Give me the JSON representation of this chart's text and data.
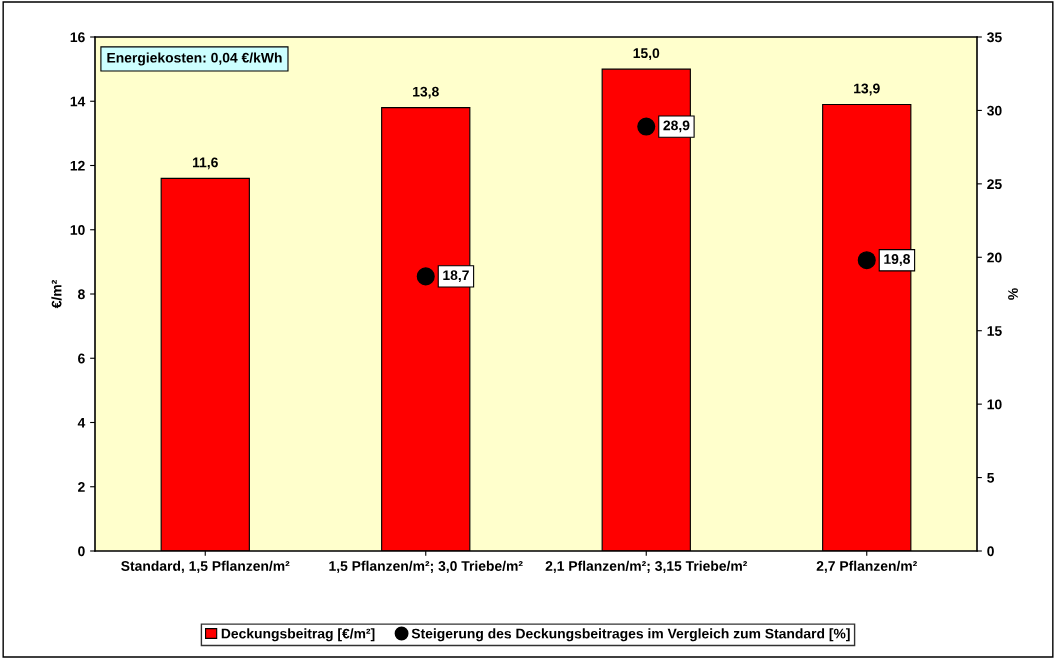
{
  "chart_data": {
    "type": "bar",
    "categories": [
      "Standard, 1,5 Pflanzen/m²",
      "1,5 Pflanzen/m²; 3,0 Triebe/m²",
      "2,1 Pflanzen/m²; 3,15 Triebe/m²",
      "2,7 Pflanzen/m²"
    ],
    "series": [
      {
        "name": "Deckungsbeitrag [€/m²]",
        "color": "#ff0000",
        "values": [
          11.6,
          13.8,
          15.0,
          13.9
        ],
        "value_labels": [
          "11,6",
          "13,8",
          "15,0",
          "13,9"
        ]
      },
      {
        "name": "Steigerung des Deckungsbeitrages im Vergleich zum Standard [%]",
        "color": "#000000",
        "type": "scatter",
        "axis": "y2",
        "values": [
          null,
          18.7,
          28.9,
          19.8
        ],
        "value_labels": [
          null,
          "18,7",
          "28,9",
          "19,8"
        ]
      }
    ],
    "ylabel": "€/m²",
    "y2label": "%",
    "ylim": [
      0,
      16
    ],
    "yticks": [
      0,
      2,
      4,
      6,
      8,
      10,
      12,
      14,
      16
    ],
    "y2lim": [
      0,
      35
    ],
    "y2ticks": [
      0,
      5,
      10,
      15,
      20,
      25,
      30,
      35
    ],
    "annotations": [
      "Energiekosten: 0,04 €/kWh"
    ],
    "legend": "bottom",
    "marker": "circle",
    "grid": false
  }
}
